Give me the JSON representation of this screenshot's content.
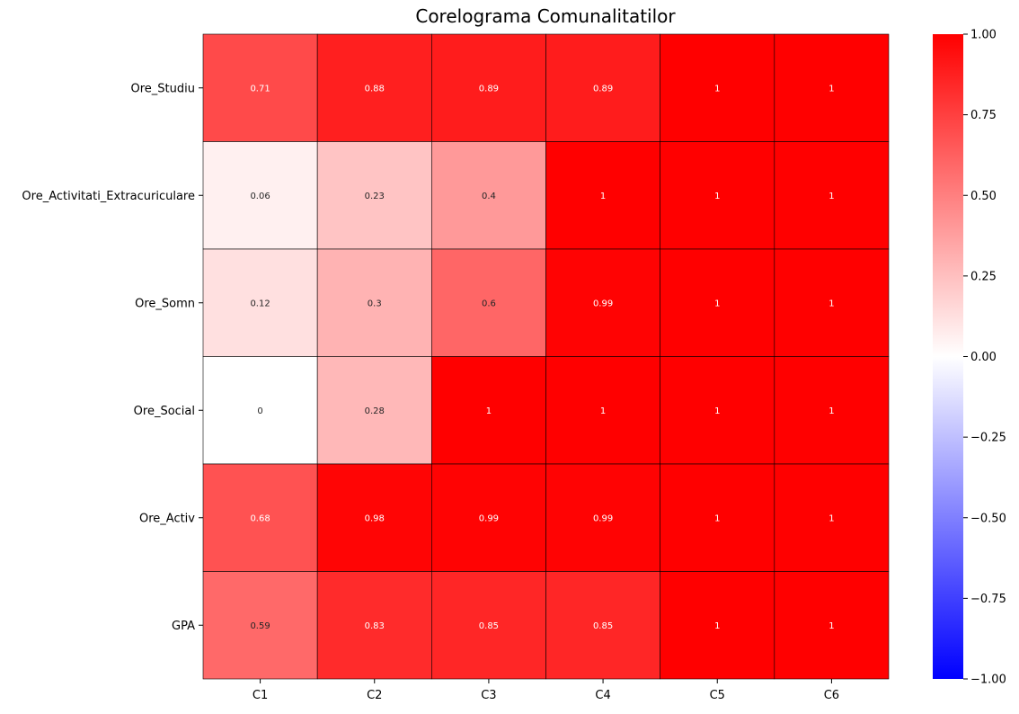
{
  "chart_data": {
    "type": "heatmap",
    "title": "Corelograma Comunalitatilor",
    "xlabel": "",
    "ylabel": "",
    "columns": [
      "C1",
      "C2",
      "C3",
      "C4",
      "C5",
      "C6"
    ],
    "rows": [
      "Ore_Studiu",
      "Ore_Activitati_Extracuriculare",
      "Ore_Somn",
      "Ore_Social",
      "Ore_Activ",
      "GPA"
    ],
    "values": [
      [
        0.71,
        0.88,
        0.89,
        0.89,
        1,
        1
      ],
      [
        0.06,
        0.23,
        0.4,
        1,
        1,
        1
      ],
      [
        0.12,
        0.3,
        0.6,
        0.99,
        1,
        1
      ],
      [
        0,
        0.28,
        1,
        1,
        1,
        1
      ],
      [
        0.68,
        0.98,
        0.99,
        0.99,
        1,
        1
      ],
      [
        0.59,
        0.83,
        0.85,
        0.85,
        1,
        1
      ]
    ],
    "vmin": -1,
    "vmax": 1,
    "colormap": "bwr",
    "colors": {
      "low": "#0000ff",
      "mid": "#ffffff",
      "high": "#ff0000",
      "cell_border": "#000000"
    },
    "colorbar": {
      "ticks": [
        1.0,
        0.75,
        0.5,
        0.25,
        0.0,
        -0.25,
        -0.5,
        -0.75,
        -1.0
      ],
      "tick_labels": [
        "1.00",
        "0.75",
        "0.50",
        "0.25",
        "0.00",
        "−0.25",
        "−0.50",
        "−0.75",
        "−1.00"
      ],
      "position": "right"
    },
    "annotations": true,
    "grid": false
  }
}
